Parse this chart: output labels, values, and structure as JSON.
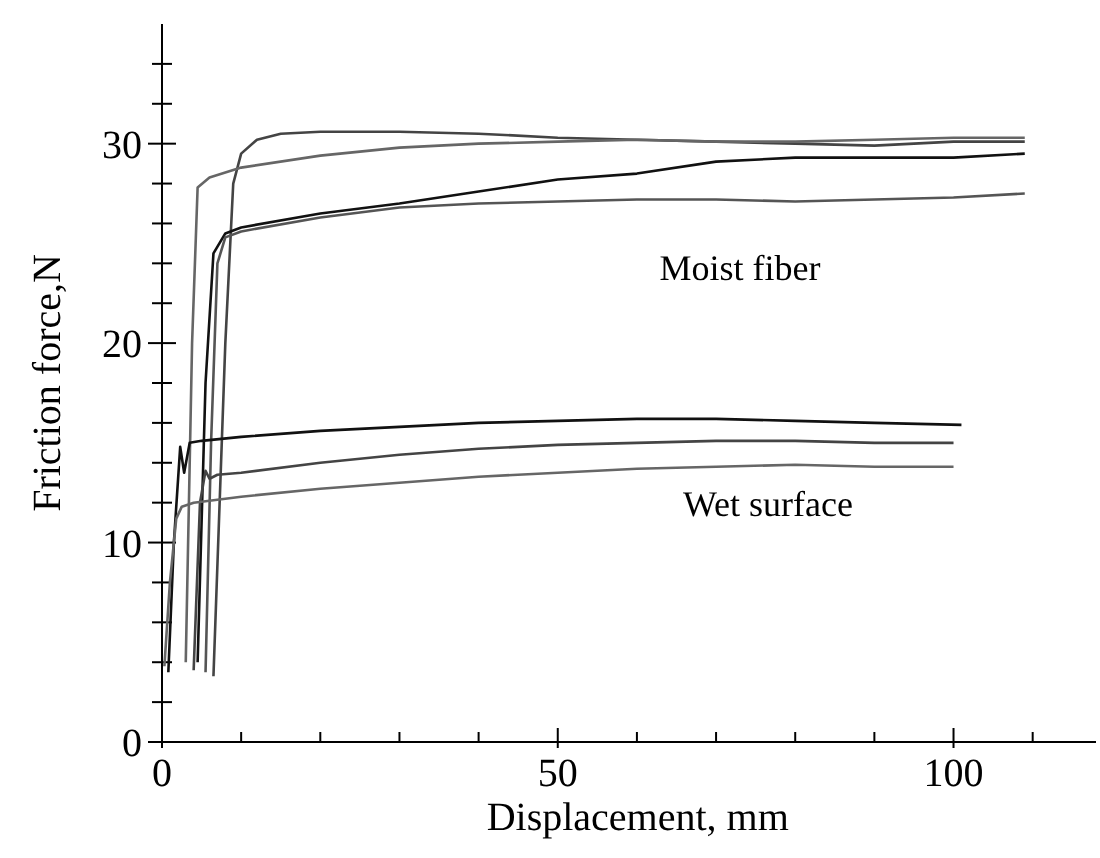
{
  "chart_data": {
    "type": "line",
    "xlabel": "Displacement, mm",
    "ylabel": "Friction force,N",
    "xlim": [
      0,
      118
    ],
    "ylim": [
      0,
      36
    ],
    "xticks": [
      0,
      {
        "value": 10,
        "label": null
      },
      {
        "value": 20,
        "label": null
      },
      {
        "value": 30,
        "label": null
      },
      {
        "value": 40,
        "label": null
      },
      50,
      {
        "value": 60,
        "label": null
      },
      {
        "value": 70,
        "label": null
      },
      {
        "value": 80,
        "label": null
      },
      {
        "value": 90,
        "label": null
      },
      100,
      {
        "value": 110,
        "label": null
      }
    ],
    "yticks": [
      0,
      {
        "value": 2,
        "label": null
      },
      {
        "value": 4,
        "label": null
      },
      {
        "value": 6,
        "label": null
      },
      {
        "value": 8,
        "label": null
      },
      10,
      {
        "value": 12,
        "label": null
      },
      {
        "value": 14,
        "label": null
      },
      {
        "value": 16,
        "label": null
      },
      {
        "value": 18,
        "label": null
      },
      20,
      {
        "value": 22,
        "label": null
      },
      {
        "value": 24,
        "label": null
      },
      {
        "value": 26,
        "label": null
      },
      {
        "value": 28,
        "label": null
      },
      30,
      {
        "value": 32,
        "label": null
      },
      {
        "value": 34,
        "label": null
      }
    ],
    "grid": false,
    "marker": "none",
    "line_style": "solid",
    "series": [
      {
        "color": "#444444",
        "x": [
          6.5,
          8,
          9,
          10,
          12,
          15,
          20,
          30,
          40,
          50,
          60,
          70,
          80,
          90,
          100,
          109
        ],
        "values": [
          3.3,
          20,
          28,
          29.5,
          30.2,
          30.5,
          30.6,
          30.6,
          30.5,
          30.3,
          30.2,
          30.1,
          30.0,
          29.9,
          30.1,
          30.1
        ]
      },
      {
        "color": "#666666",
        "x": [
          3,
          3.8,
          4.5,
          6,
          10,
          20,
          30,
          40,
          50,
          60,
          70,
          80,
          90,
          100,
          109
        ],
        "values": [
          4,
          20,
          27.8,
          28.3,
          28.8,
          29.4,
          29.8,
          30,
          30.1,
          30.2,
          30.1,
          30.1,
          30.2,
          30.3,
          30.3
        ]
      },
      {
        "color": "#111111",
        "x": [
          4.5,
          5.5,
          6.5,
          8,
          10,
          20,
          30,
          40,
          50,
          60,
          70,
          80,
          90,
          100,
          109
        ],
        "values": [
          4,
          18,
          24.5,
          25.5,
          25.8,
          26.5,
          27,
          27.6,
          28.2,
          28.5,
          29.1,
          29.3,
          29.3,
          29.3,
          29.5
        ]
      },
      {
        "color": "#555555",
        "x": [
          5.5,
          6.2,
          7,
          8,
          10,
          20,
          30,
          40,
          50,
          60,
          70,
          80,
          90,
          100,
          109
        ],
        "values": [
          3.5,
          15,
          24,
          25.3,
          25.6,
          26.3,
          26.8,
          27,
          27.1,
          27.2,
          27.2,
          27.1,
          27.2,
          27.3,
          27.5
        ]
      },
      {
        "color": "#111111",
        "x": [
          0.8,
          1.5,
          2.3,
          2.8,
          3.5,
          5,
          10,
          20,
          30,
          40,
          50,
          60,
          70,
          80,
          90,
          101
        ],
        "values": [
          3.5,
          10,
          14.8,
          13.5,
          15,
          15.1,
          15.3,
          15.6,
          15.8,
          16,
          16.1,
          16.2,
          16.2,
          16.1,
          16,
          15.9
        ]
      },
      {
        "color": "#444444",
        "x": [
          4,
          4.8,
          5.5,
          6,
          7,
          10,
          20,
          30,
          40,
          50,
          60,
          70,
          80,
          90,
          100
        ],
        "values": [
          3.6,
          12,
          13.6,
          13.2,
          13.4,
          13.5,
          14,
          14.4,
          14.7,
          14.9,
          15,
          15.1,
          15.1,
          15,
          15
        ]
      },
      {
        "color": "#666666",
        "x": [
          0.3,
          1,
          1.8,
          2.5,
          4,
          6,
          10,
          20,
          30,
          40,
          50,
          60,
          70,
          80,
          90,
          100
        ],
        "values": [
          3.8,
          8,
          11.2,
          11.8,
          12,
          12.1,
          12.3,
          12.7,
          13,
          13.3,
          13.5,
          13.7,
          13.8,
          13.9,
          13.8,
          13.8
        ]
      }
    ],
    "annotations": [
      "Moist fiber",
      "Wet surface"
    ]
  }
}
